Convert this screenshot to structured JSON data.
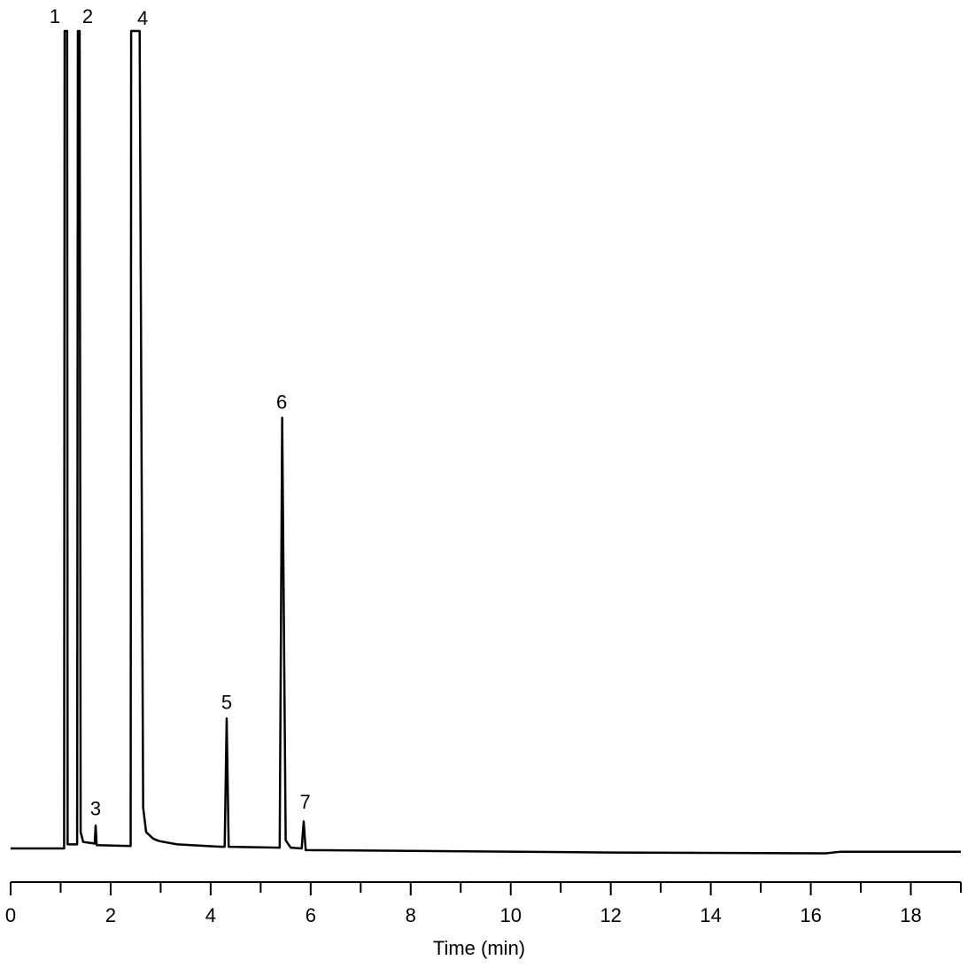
{
  "chart_data": {
    "type": "line",
    "xlabel": "Time (min)",
    "xlim": [
      0,
      19
    ],
    "xticks": [
      0,
      2,
      4,
      6,
      8,
      10,
      12,
      14,
      16,
      18
    ],
    "xminorticks": [
      1,
      3,
      5,
      7,
      9,
      11,
      13,
      15,
      17,
      19
    ],
    "ylim": [
      0,
      100
    ],
    "x": [
      0,
      1.07,
      1.08,
      1.13,
      1.14,
      1.33,
      1.345,
      1.38,
      1.4,
      1.45,
      1.68,
      1.7,
      1.72,
      2.4,
      2.41,
      2.58,
      2.65,
      2.71,
      2.85,
      2.97,
      3.33,
      4.21,
      4.28,
      4.32,
      4.36,
      5.38,
      5.43,
      5.5,
      5.6,
      5.82,
      5.86,
      5.9,
      8,
      12,
      16.3,
      16.6,
      19
    ],
    "series": [
      {
        "color": "#000000",
        "values": [
          0,
          0,
          100,
          100,
          0.5,
          0.5,
          100,
          100,
          2,
          0.8,
          0.6,
          2.8,
          0.4,
          0.3,
          100,
          100,
          5,
          2,
          1.2,
          0.9,
          0.5,
          0.2,
          0.2,
          15.9,
          0.2,
          0.1,
          52.7,
          1,
          0.1,
          0,
          3.3,
          -0.2,
          -0.3,
          -0.5,
          -0.6,
          -0.4,
          -0.4
        ]
      }
    ],
    "annotations": [
      {
        "text": "1",
        "x": 0.885,
        "y": 101.6
      },
      {
        "text": "2",
        "x": 1.54,
        "y": 101.6
      },
      {
        "text": "3",
        "x": 1.7,
        "y": 4.7
      },
      {
        "text": "4",
        "x": 2.64,
        "y": 101.4
      },
      {
        "text": "5",
        "x": 4.32,
        "y": 17.7
      },
      {
        "text": "6",
        "x": 5.42,
        "y": 54.4
      },
      {
        "text": "7",
        "x": 5.89,
        "y": 5.5
      }
    ]
  }
}
